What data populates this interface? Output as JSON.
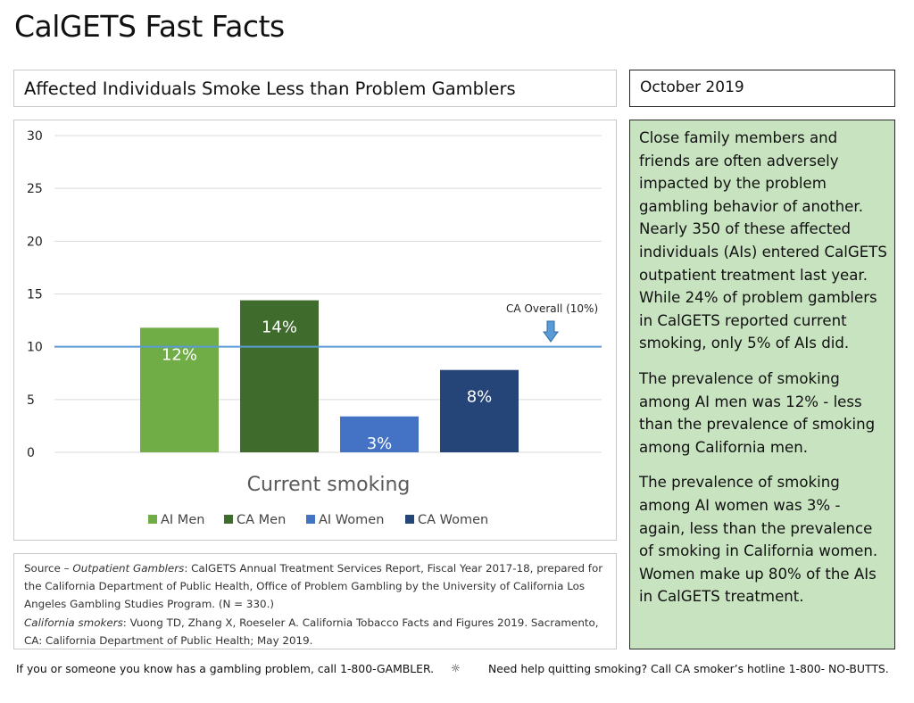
{
  "page": {
    "title": "CalGETS Fast Facts",
    "date": "October 2019"
  },
  "chart_data": {
    "type": "bar",
    "title": "Affected Individuals Smoke Less than Problem Gamblers",
    "xlabel": "Current smoking",
    "ylabel": "",
    "ylim": [
      0,
      30
    ],
    "yticks": [
      0,
      5,
      10,
      15,
      20,
      25,
      30
    ],
    "grid": true,
    "legend_position": "bottom",
    "categories": [
      "Current smoking"
    ],
    "series": [
      {
        "name": "AI Men",
        "values": [
          11.8
        ],
        "label": "12%",
        "color": "#70ad47"
      },
      {
        "name": "CA Men",
        "values": [
          14.4
        ],
        "label": "14%",
        "color": "#3f6b2d"
      },
      {
        "name": "AI Women",
        "values": [
          3.4
        ],
        "label": "3%",
        "color": "#4472c4"
      },
      {
        "name": "CA Women",
        "values": [
          7.8
        ],
        "label": "8%",
        "color": "#254478"
      }
    ],
    "reference_line": {
      "value": 10,
      "label": "CA Overall (10%)",
      "color": "#5b9bd5"
    }
  },
  "sidebar": {
    "paragraphs": [
      "Close family members and friends are often adversely impacted by the problem gambling behavior of another. Nearly 350 of these affected individuals (AIs) entered CalGETS outpatient treatment last year. While 24% of problem gamblers in CalGETS reported current smoking, only 5% of AIs did.",
      "The prevalence of smoking among AI men was 12% - less than the prevalence of smoking among California men.",
      "The prevalence of smoking among AI women was 3% - again, less than the prevalence of smoking in California women. Women make up 80% of the AIs in CalGETS treatment."
    ]
  },
  "source": {
    "prefix": "Source – ",
    "gamblers_label": "Outpatient Gamblers",
    "gamblers_text": ": CalGETS Annual Treatment Services Report, Fiscal Year 2017-18, prepared for the California Department of Public Health, Office of Problem Gambling by the University of California Los Angeles Gambling Studies Program. (N = 330.)",
    "smokers_label": "California smokers",
    "smokers_text": ": Vuong TD, Zhang X, Roeseler A. California Tobacco Facts and Figures 2019. Sacramento, CA: California Department of Public Health; May 2019."
  },
  "footer": {
    "left": "If you or someone you know has a gambling problem, call 1-800-GAMBLER.",
    "icon": "sun-icon",
    "right": "Need help quitting smoking? Call CA smoker’s hotline 1-800- NO-BUTTS."
  }
}
